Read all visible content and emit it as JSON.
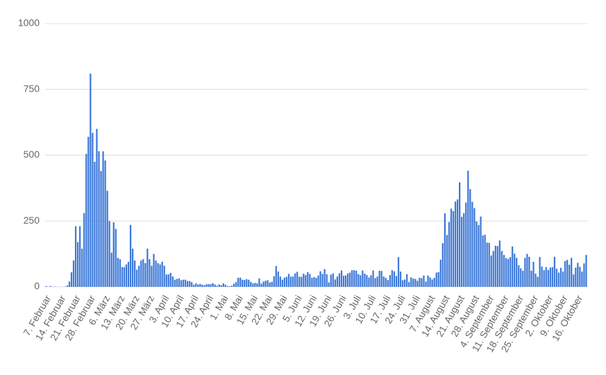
{
  "chart_data": {
    "type": "bar",
    "categories": [
      "7. Februar",
      null,
      null,
      null,
      null,
      null,
      null,
      "14. Februar",
      null,
      null,
      null,
      null,
      null,
      null,
      "21. Februar",
      null,
      null,
      null,
      null,
      null,
      null,
      "28. Februar",
      null,
      null,
      null,
      null,
      null,
      null,
      "6. März",
      null,
      null,
      null,
      null,
      null,
      null,
      "13. März",
      null,
      null,
      null,
      null,
      null,
      null,
      "20. März",
      null,
      null,
      null,
      null,
      null,
      null,
      "27. März",
      null,
      null,
      null,
      null,
      null,
      null,
      "3. April",
      null,
      null,
      null,
      null,
      null,
      null,
      "10. April",
      null,
      null,
      null,
      null,
      null,
      null,
      "17. April",
      null,
      null,
      null,
      null,
      null,
      null,
      "24. April",
      null,
      null,
      null,
      null,
      null,
      null,
      "1. Mai",
      null,
      null,
      null,
      null,
      null,
      null,
      "8. Mai",
      null,
      null,
      null,
      null,
      null,
      null,
      "15. Mai",
      null,
      null,
      null,
      null,
      null,
      null,
      "22. Mai",
      null,
      null,
      null,
      null,
      null,
      null,
      "29. Mai",
      null,
      null,
      null,
      null,
      null,
      null,
      "5. Juni",
      null,
      null,
      null,
      null,
      null,
      null,
      "12. Juni",
      null,
      null,
      null,
      null,
      null,
      null,
      "19. Juni",
      null,
      null,
      null,
      null,
      null,
      null,
      "26. Juni",
      null,
      null,
      null,
      null,
      null,
      null,
      "3. Juli",
      null,
      null,
      null,
      null,
      null,
      null,
      "10. Juli",
      null,
      null,
      null,
      null,
      null,
      null,
      "17. Juli",
      null,
      null,
      null,
      null,
      null,
      null,
      "24. Juli",
      null,
      null,
      null,
      null,
      null,
      null,
      "31. Juli",
      null,
      null,
      null,
      null,
      null,
      null,
      "7. August",
      null,
      null,
      null,
      null,
      null,
      null,
      "14. August",
      null,
      null,
      null,
      null,
      null,
      null,
      "21. August",
      null,
      null,
      null,
      null,
      null,
      null,
      "28. August",
      null,
      null,
      null,
      null,
      null,
      null,
      "4. September",
      null,
      null,
      null,
      null,
      null,
      null,
      "11. September",
      null,
      null,
      null,
      null,
      null,
      null,
      "18. September",
      null,
      null,
      null,
      null,
      null,
      null,
      "25. September",
      null,
      null,
      null,
      null,
      null,
      null,
      "2. Oktober",
      null,
      null,
      null,
      null,
      null,
      null,
      "9. Oktober",
      null,
      null,
      null,
      null,
      null,
      null,
      "16. Oktober",
      null,
      null,
      null,
      null
    ],
    "values": [
      3,
      0,
      3,
      0,
      1,
      0,
      0,
      0,
      0,
      1,
      5,
      20,
      55,
      100,
      230,
      170,
      230,
      145,
      280,
      505,
      570,
      810,
      585,
      475,
      600,
      515,
      440,
      515,
      480,
      365,
      250,
      130,
      245,
      220,
      110,
      105,
      75,
      75,
      85,
      95,
      235,
      145,
      100,
      65,
      80,
      100,
      105,
      90,
      145,
      105,
      80,
      125,
      100,
      90,
      85,
      95,
      80,
      47,
      47,
      53,
      39,
      27,
      30,
      32,
      25,
      27,
      27,
      22,
      22,
      18,
      8,
      13,
      9,
      11,
      8,
      6,
      10,
      10,
      10,
      14,
      9,
      4,
      9,
      6,
      13,
      8,
      3,
      2,
      4,
      12,
      18,
      34,
      35,
      27,
      26,
      29,
      27,
      19,
      13,
      15,
      13,
      32,
      12,
      20,
      23,
      25,
      16,
      19,
      40,
      79,
      58,
      39,
      27,
      35,
      38,
      49,
      39,
      39,
      51,
      57,
      38,
      38,
      50,
      45,
      56,
      49,
      34,
      37,
      34,
      43,
      59,
      49,
      67,
      48,
      17,
      46,
      51,
      28,
      39,
      51,
      62,
      42,
      43,
      51,
      54,
      63,
      63,
      61,
      48,
      44,
      62,
      50,
      45,
      35,
      44,
      62,
      33,
      39,
      61,
      60,
      39,
      34,
      26,
      45,
      63,
      59,
      41,
      113,
      58,
      25,
      28,
      48,
      18,
      36,
      31,
      30,
      23,
      34,
      33,
      43,
      20,
      43,
      36,
      28,
      34,
      54,
      56,
      103,
      166,
      279,
      197,
      246,
      297,
      288,
      324,
      332,
      397,
      266,
      280,
      320,
      441,
      371,
      323,
      299,
      248,
      235,
      267,
      195,
      198,
      168,
      167,
      119,
      136,
      156,
      155,
      176,
      136,
      121,
      109,
      106,
      113,
      153,
      126,
      110,
      82,
      70,
      61,
      110,
      125,
      114,
      61,
      95,
      50,
      38,
      113,
      77,
      63,
      75,
      64,
      73,
      75,
      114,
      69,
      54,
      72,
      58,
      98,
      102,
      84,
      110,
      47,
      73,
      91,
      76,
      58,
      89,
      121
    ],
    "color": "#3c78d8",
    "ylim": [
      0,
      1000
    ],
    "yticks": [
      0,
      250,
      500,
      750,
      1000
    ],
    "grid": true
  }
}
